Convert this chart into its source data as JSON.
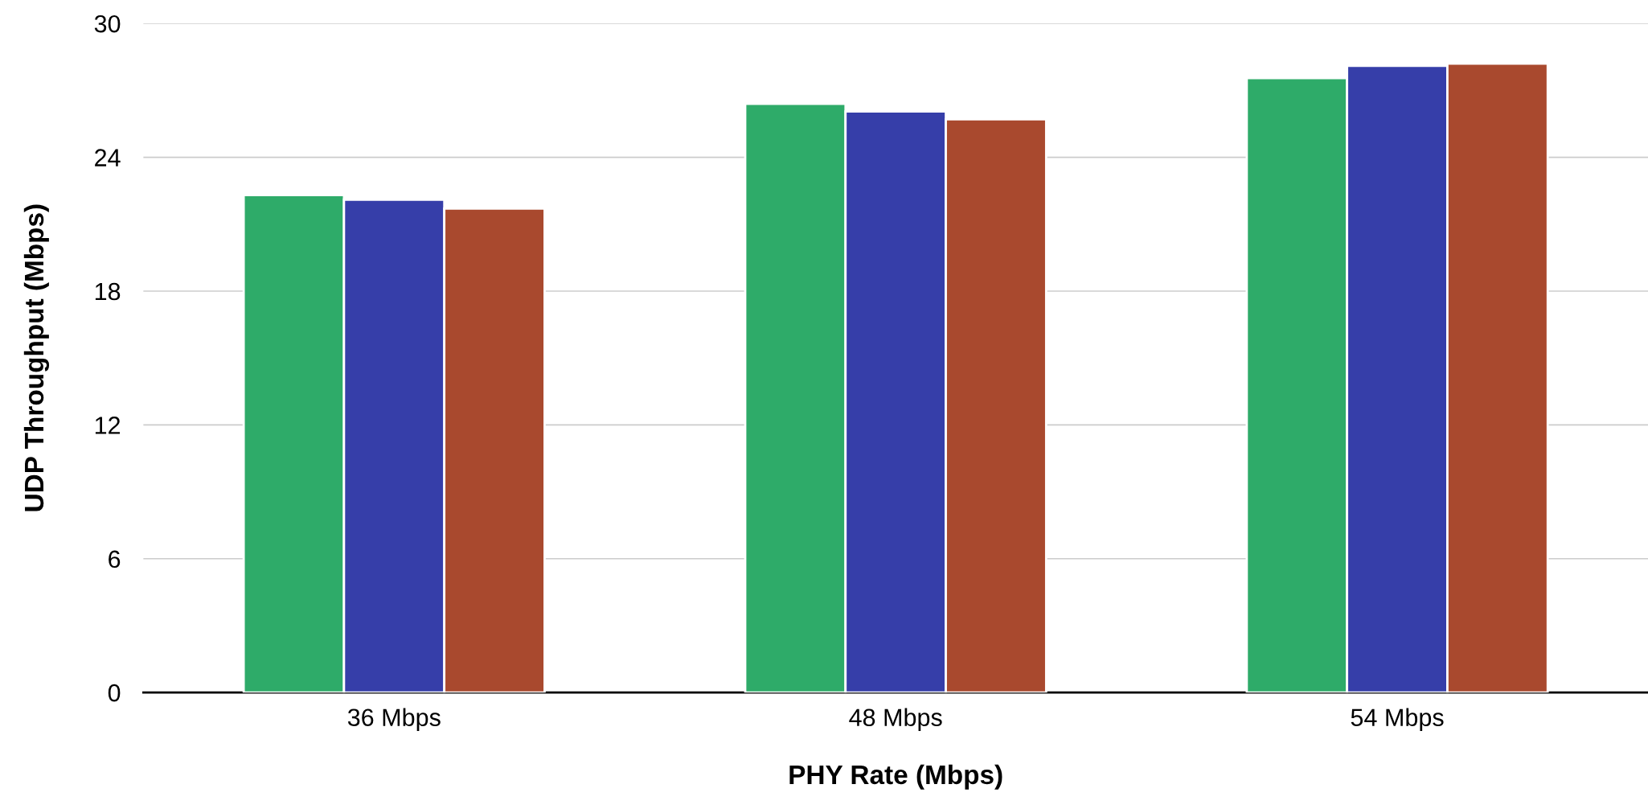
{
  "chart_data": {
    "type": "bar",
    "xlabel": "PHY Rate (Mbps)",
    "ylabel": "UDP Throughput (Mbps)",
    "categories": [
      "36 Mbps",
      "48 Mbps",
      "54 Mbps"
    ],
    "series": [
      {
        "color": "#2eab69",
        "values": [
          22.3,
          26.4,
          27.55
        ]
      },
      {
        "color": "#363ea9",
        "values": [
          22.1,
          26.05,
          28.1
        ]
      },
      {
        "color": "#a9492e",
        "values": [
          21.7,
          25.7,
          28.2
        ]
      }
    ],
    "ylim": [
      0,
      30
    ],
    "yticks": [
      0,
      6,
      12,
      18,
      24,
      30
    ],
    "grid": "y",
    "legend": false
  }
}
